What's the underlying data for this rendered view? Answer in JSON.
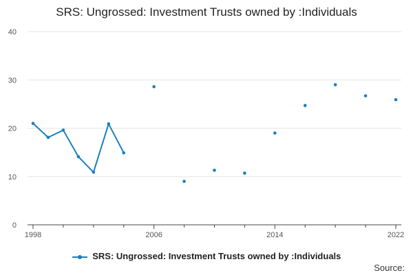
{
  "title": "SRS: Ungrossed: Investment Trusts owned by :Individuals",
  "source_label": "Source:",
  "legend": {
    "label": "SRS: Ungrossed: Investment Trusts owned by :Individuals"
  },
  "colors": {
    "series": "#1a7fbc",
    "grid": "#e6e6e6",
    "axis": "#444444"
  },
  "chart_data": {
    "type": "line",
    "title": "SRS: Ungrossed: Investment Trusts owned by :Individuals",
    "xlabel": "",
    "ylabel": "",
    "xlim": [
      1998,
      2022
    ],
    "ylim": [
      0,
      40
    ],
    "x_ticks": [
      1998,
      2006,
      2014,
      2022
    ],
    "y_ticks": [
      0,
      10,
      20,
      30,
      40
    ],
    "grid": "horizontal",
    "legend_position": "bottom-center",
    "series": [
      {
        "name": "SRS: Ungrossed: Investment Trusts owned by :Individuals",
        "points": [
          {
            "x": 1998,
            "y": 21.0
          },
          {
            "x": 1999,
            "y": 18.1
          },
          {
            "x": 2000,
            "y": 19.6
          },
          {
            "x": 2001,
            "y": 14.1
          },
          {
            "x": 2002,
            "y": 10.9
          },
          {
            "x": 2003,
            "y": 20.9
          },
          {
            "x": 2004,
            "y": 14.9
          },
          {
            "x": 2006,
            "y": 28.6
          },
          {
            "x": 2008,
            "y": 9.0
          },
          {
            "x": 2010,
            "y": 11.3
          },
          {
            "x": 2012,
            "y": 10.7
          },
          {
            "x": 2014,
            "y": 19.0
          },
          {
            "x": 2016,
            "y": 24.7
          },
          {
            "x": 2018,
            "y": 29.0
          },
          {
            "x": 2020,
            "y": 26.7
          },
          {
            "x": 2022,
            "y": 25.9
          }
        ]
      }
    ]
  }
}
